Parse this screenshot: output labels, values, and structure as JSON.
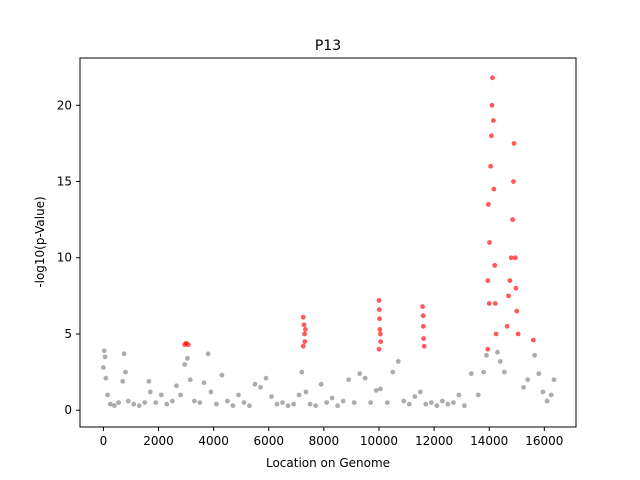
{
  "chart_data": {
    "type": "scatter",
    "title": "P13",
    "xlabel": "Location on Genome",
    "ylabel": "-log10(p-Value)",
    "xlim": [
      -850,
      17150
    ],
    "ylim": [
      -1.1,
      23.1
    ],
    "xticks": [
      0,
      2000,
      4000,
      6000,
      8000,
      10000,
      12000,
      14000,
      16000
    ],
    "yticks": [
      0,
      5,
      10,
      15,
      20
    ],
    "grid": false,
    "legend": "none",
    "colors": {
      "significant": "#ff0000",
      "background": "#808080"
    },
    "series": [
      {
        "values": [
          [
            0,
            2.8
          ],
          [
            30,
            3.9
          ],
          [
            60,
            3.5
          ],
          [
            90,
            2.1
          ],
          [
            150,
            1.0
          ],
          [
            250,
            0.4
          ],
          [
            400,
            0.3
          ],
          [
            550,
            0.5
          ],
          [
            700,
            1.9
          ],
          [
            750,
            3.7
          ],
          [
            800,
            2.5
          ],
          [
            900,
            0.6
          ],
          [
            1100,
            0.4
          ],
          [
            1300,
            0.3
          ],
          [
            1500,
            0.5
          ],
          [
            1650,
            1.9
          ],
          [
            1700,
            1.2
          ],
          [
            1900,
            0.5
          ],
          [
            2100,
            1.0
          ],
          [
            2300,
            0.4
          ],
          [
            2500,
            0.6
          ],
          [
            2650,
            1.6
          ],
          [
            2800,
            1.0
          ],
          [
            2950,
            3.0
          ],
          [
            3050,
            3.4
          ],
          [
            3150,
            2.0
          ],
          [
            3300,
            0.6
          ],
          [
            3500,
            0.5
          ],
          [
            3650,
            1.8
          ],
          [
            3800,
            3.7
          ],
          [
            3900,
            1.2
          ],
          [
            4100,
            0.4
          ],
          [
            4300,
            2.3
          ],
          [
            4500,
            0.6
          ],
          [
            4700,
            0.3
          ],
          [
            4900,
            1.0
          ],
          [
            5100,
            0.5
          ],
          [
            5300,
            0.3
          ],
          [
            5500,
            1.7
          ],
          [
            5700,
            1.5
          ],
          [
            5900,
            2.1
          ],
          [
            6100,
            0.9
          ],
          [
            6300,
            0.4
          ],
          [
            6500,
            0.5
          ],
          [
            6700,
            0.3
          ],
          [
            6900,
            0.4
          ],
          [
            7100,
            1.0
          ],
          [
            7200,
            2.5
          ],
          [
            7350,
            1.2
          ],
          [
            7500,
            0.4
          ],
          [
            7700,
            0.3
          ],
          [
            7900,
            1.7
          ],
          [
            8100,
            0.5
          ],
          [
            8300,
            0.8
          ],
          [
            8500,
            0.3
          ],
          [
            8700,
            0.6
          ],
          [
            8900,
            2.0
          ],
          [
            9100,
            0.5
          ],
          [
            9300,
            2.4
          ],
          [
            9500,
            2.1
          ],
          [
            9700,
            0.5
          ],
          [
            9900,
            1.3
          ],
          [
            10050,
            1.4
          ],
          [
            10300,
            0.5
          ],
          [
            10500,
            2.5
          ],
          [
            10700,
            3.2
          ],
          [
            10900,
            0.6
          ],
          [
            11100,
            0.4
          ],
          [
            11300,
            0.9
          ],
          [
            11500,
            1.2
          ],
          [
            11700,
            0.4
          ],
          [
            11900,
            0.5
          ],
          [
            12100,
            0.3
          ],
          [
            12300,
            0.6
          ],
          [
            12500,
            0.4
          ],
          [
            12700,
            0.5
          ],
          [
            12900,
            1.0
          ],
          [
            13100,
            0.3
          ],
          [
            13350,
            2.4
          ],
          [
            13600,
            1.0
          ],
          [
            13800,
            2.5
          ],
          [
            13900,
            3.6
          ],
          [
            14300,
            3.8
          ],
          [
            14400,
            3.2
          ],
          [
            14550,
            2.5
          ],
          [
            15250,
            1.5
          ],
          [
            15400,
            2.0
          ],
          [
            15650,
            3.6
          ],
          [
            15800,
            2.4
          ],
          [
            15950,
            1.2
          ],
          [
            16100,
            0.6
          ],
          [
            16250,
            1.0
          ],
          [
            16350,
            2.0
          ]
        ]
      },
      {
        "values": [
          [
            2950,
            4.3
          ],
          [
            3000,
            4.4
          ],
          [
            3080,
            4.3
          ],
          [
            7250,
            6.1
          ],
          [
            7250,
            4.2
          ],
          [
            7280,
            5.6
          ],
          [
            7300,
            5.0
          ],
          [
            7310,
            4.5
          ],
          [
            7330,
            5.3
          ],
          [
            10000,
            7.2
          ],
          [
            10000,
            4.0
          ],
          [
            10010,
            6.6
          ],
          [
            10020,
            6.0
          ],
          [
            10030,
            5.3
          ],
          [
            10050,
            5.0
          ],
          [
            10060,
            4.5
          ],
          [
            11580,
            6.8
          ],
          [
            11600,
            6.2
          ],
          [
            11610,
            5.5
          ],
          [
            11620,
            4.7
          ],
          [
            11640,
            4.2
          ],
          [
            13950,
            8.5
          ],
          [
            13950,
            4.0
          ],
          [
            13970,
            13.5
          ],
          [
            14000,
            7.0
          ],
          [
            14010,
            11.0
          ],
          [
            14050,
            16.0
          ],
          [
            14080,
            18.0
          ],
          [
            14100,
            20.0
          ],
          [
            14120,
            21.8
          ],
          [
            14150,
            19.0
          ],
          [
            14170,
            14.5
          ],
          [
            14200,
            9.5
          ],
          [
            14220,
            7.0
          ],
          [
            14250,
            5.0
          ],
          [
            14650,
            5.5
          ],
          [
            14700,
            7.5
          ],
          [
            14750,
            8.5
          ],
          [
            14800,
            10.0
          ],
          [
            14850,
            12.5
          ],
          [
            14880,
            15.0
          ],
          [
            14900,
            17.5
          ],
          [
            14950,
            10.0
          ],
          [
            14970,
            8.0
          ],
          [
            15000,
            6.5
          ],
          [
            15050,
            5.0
          ],
          [
            15600,
            4.6
          ]
        ]
      }
    ]
  }
}
